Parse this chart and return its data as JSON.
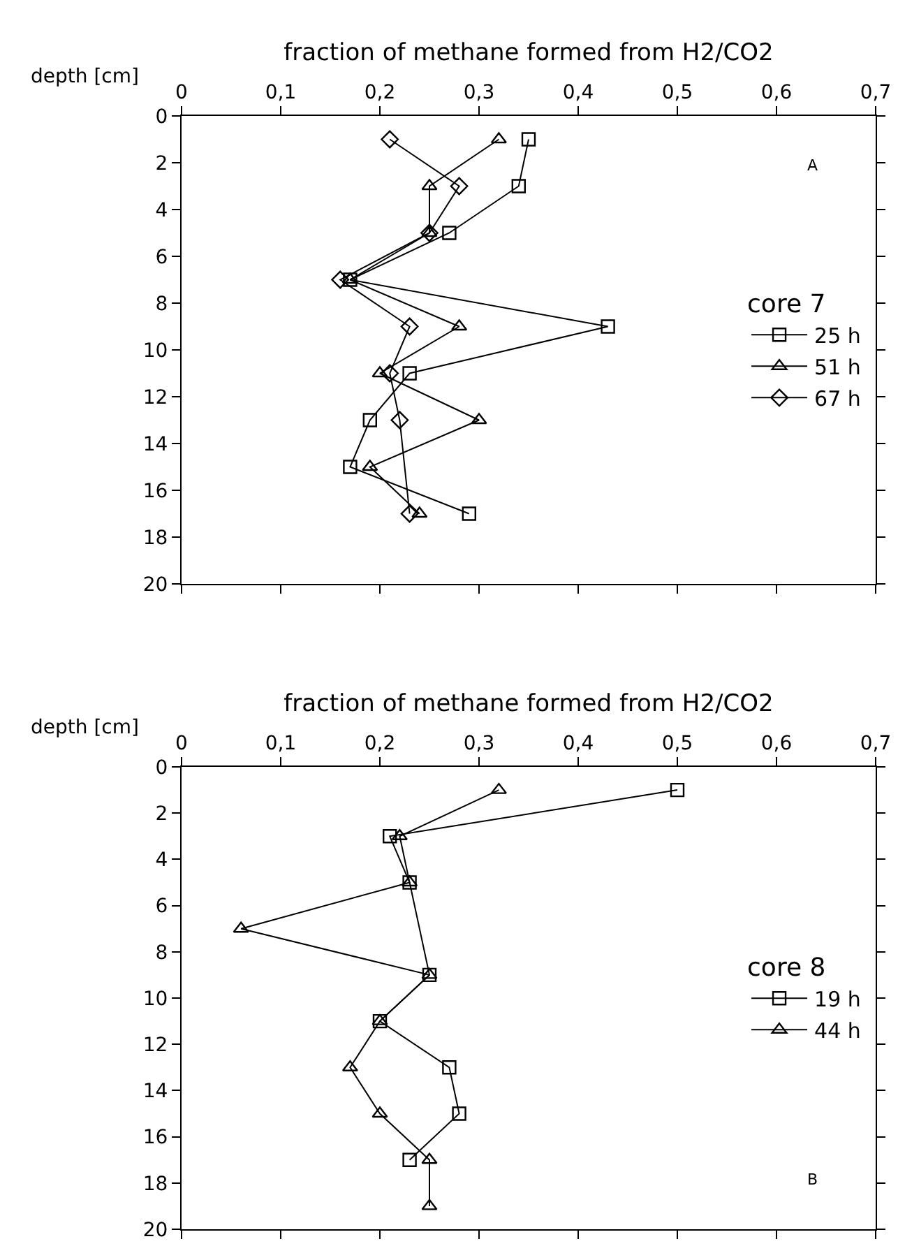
{
  "chart_data": [
    {
      "type": "line",
      "xlabel": "fraction of methane formed from H2/CO2",
      "ylabel": "depth [cm]",
      "legend_title": "core 7",
      "legend": "right",
      "annotations": [
        "A"
      ],
      "xlim": [
        0,
        0.7
      ],
      "xticks": [
        0,
        {
          "value": 0.1,
          "label": "0,1"
        },
        {
          "value": 0.2,
          "label": "0,2"
        },
        {
          "value": 0.3,
          "label": "0,3"
        },
        {
          "value": 0.4,
          "label": "0,4"
        },
        {
          "value": 0.5,
          "label": "0,5"
        },
        {
          "value": 0.6,
          "label": "0,6"
        },
        {
          "value": 0.7,
          "label": "0,7"
        }
      ],
      "ylim": [
        20,
        0
      ],
      "yticks": [
        0,
        2,
        4,
        6,
        8,
        10,
        12,
        14,
        16,
        18,
        20
      ],
      "series": [
        {
          "name": "25 h",
          "color": "#000000",
          "marker": "square",
          "x": [
            0.35,
            0.34,
            0.27,
            0.17,
            0.43,
            0.23,
            0.19,
            0.17,
            0.29
          ],
          "values": [
            1,
            3,
            5,
            7,
            9,
            11,
            13,
            15,
            17
          ]
        },
        {
          "name": "51 h",
          "color": "#000000",
          "marker": "triangle",
          "x": [
            0.32,
            0.25,
            0.25,
            0.17,
            0.28,
            0.2,
            0.3,
            0.19,
            0.24
          ],
          "values": [
            1,
            3,
            5,
            7,
            9,
            11,
            13,
            15,
            17
          ]
        },
        {
          "name": "67 h",
          "color": "#000000",
          "marker": "diamond",
          "x": [
            0.21,
            0.28,
            0.25,
            0.16,
            0.23,
            0.21,
            0.22,
            0.23
          ],
          "values": [
            1,
            3,
            5,
            7,
            9,
            11,
            13,
            17
          ]
        }
      ]
    },
    {
      "type": "line",
      "xlabel": "fraction of methane formed from H2/CO2",
      "ylabel": "depth [cm]",
      "legend_title": "core 8",
      "legend": "right",
      "annotations": [
        "B"
      ],
      "xlim": [
        0,
        0.7
      ],
      "xticks": [
        0,
        {
          "value": 0.1,
          "label": "0,1"
        },
        {
          "value": 0.2,
          "label": "0,2"
        },
        {
          "value": 0.3,
          "label": "0,3"
        },
        {
          "value": 0.4,
          "label": "0,4"
        },
        {
          "value": 0.5,
          "label": "0,5"
        },
        {
          "value": 0.6,
          "label": "0,6"
        },
        {
          "value": 0.7,
          "label": "0,7"
        }
      ],
      "ylim": [
        20,
        0
      ],
      "yticks": [
        0,
        2,
        4,
        6,
        8,
        10,
        12,
        14,
        16,
        18,
        20
      ],
      "series": [
        {
          "name": "19 h",
          "color": "#000000",
          "marker": "square",
          "x": [
            0.5,
            0.21,
            0.23,
            0.25,
            0.2,
            0.27,
            0.28,
            0.23
          ],
          "values": [
            1,
            3,
            5,
            9,
            11,
            13,
            15,
            17
          ]
        },
        {
          "name": "44 h",
          "color": "#000000",
          "marker": "triangle",
          "x": [
            0.32,
            0.22,
            0.23,
            0.06,
            0.25,
            0.2,
            0.17,
            0.2,
            0.25,
            0.25
          ],
          "values": [
            1,
            3,
            5,
            7,
            9,
            11,
            13,
            15,
            17,
            19
          ]
        }
      ]
    }
  ]
}
